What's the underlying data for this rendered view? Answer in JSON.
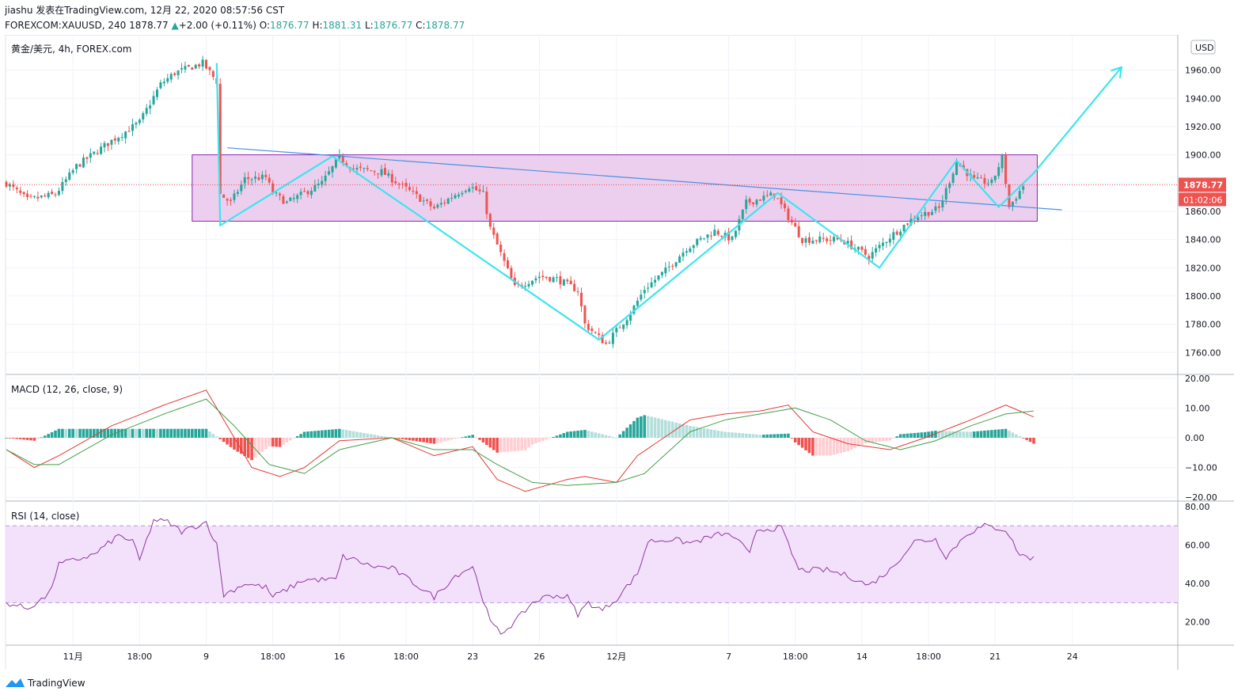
{
  "header": {
    "published_line": "jiashu 发表在TradingView.com, 12月 22, 2020 08:57:56 CST",
    "symbol": "FOREXCOM:XAUUSD, 240",
    "last": "1878.77",
    "change": "+2.00 (+0.11%)",
    "o_label": "O:",
    "o": "1876.77",
    "h_label": "H:",
    "h": "1881.31",
    "l_label": "L:",
    "l": "1876.77",
    "c_label": "C:",
    "c": "1878.77"
  },
  "footer": {
    "brand": "TradingView"
  },
  "colors": {
    "up": "#26a69a",
    "down": "#ef5350",
    "zigzag": "#3de4ef",
    "trend": "#4a90e2",
    "box_fill": "#e9c7eb",
    "box_stroke": "#8e24aa",
    "rsi_band": "#f3e0fb",
    "rsi_line": "#8e3a9f",
    "macd_line": "#e53935",
    "signal_line": "#43a047",
    "price_tag": "#ef5350"
  },
  "chart_data": [
    {
      "type": "candlestick",
      "title": "黄金/美元, 4h, FOREX.com",
      "currency": "USD",
      "y_ticks": [
        1760,
        1780,
        1800,
        1820,
        1840,
        1860,
        1880,
        1900,
        1920,
        1940,
        1960
      ],
      "y_tick_labels": [
        "1760.00",
        "1780.00",
        "1800.00",
        "1820.00",
        "1840.00",
        "1860.00",
        "1880.00",
        "1900.00",
        "1920.00",
        "1940.00",
        "1960.00"
      ],
      "ylim": [
        1745,
        1985
      ],
      "x_ticks": [
        "11月",
        "18:00",
        "9",
        "18:00",
        "16",
        "18:00",
        "23",
        "26",
        "12月",
        "7",
        "18:00",
        "14",
        "18:00",
        "21",
        "24"
      ],
      "x_tick_index": [
        19,
        38,
        57,
        76,
        95,
        114,
        133,
        152,
        174,
        206,
        225,
        244,
        263,
        282,
        304
      ],
      "current_price": "1878.77",
      "countdown": "01:02:06",
      "anchors": [
        [
          0,
          1880
        ],
        [
          6,
          1868
        ],
        [
          14,
          1872
        ],
        [
          20,
          1892
        ],
        [
          30,
          1910
        ],
        [
          38,
          1923
        ],
        [
          44,
          1950
        ],
        [
          48,
          1958
        ],
        [
          56,
          1965
        ],
        [
          60,
          1952
        ],
        [
          61,
          1872
        ],
        [
          64,
          1866
        ],
        [
          68,
          1883
        ],
        [
          74,
          1884
        ],
        [
          76,
          1873
        ],
        [
          80,
          1866
        ],
        [
          90,
          1880
        ],
        [
          95,
          1898
        ],
        [
          99,
          1890
        ],
        [
          107,
          1888
        ],
        [
          114,
          1876
        ],
        [
          122,
          1862
        ],
        [
          128,
          1872
        ],
        [
          132,
          1878
        ],
        [
          136,
          1872
        ],
        [
          138,
          1848
        ],
        [
          145,
          1806
        ],
        [
          152,
          1814
        ],
        [
          157,
          1812
        ],
        [
          163,
          1804
        ],
        [
          165,
          1780
        ],
        [
          171,
          1766
        ],
        [
          178,
          1788
        ],
        [
          182,
          1805
        ],
        [
          188,
          1818
        ],
        [
          194,
          1834
        ],
        [
          202,
          1846
        ],
        [
          207,
          1840
        ],
        [
          211,
          1866
        ],
        [
          219,
          1872
        ],
        [
          227,
          1840
        ],
        [
          238,
          1840
        ],
        [
          246,
          1828
        ],
        [
          252,
          1842
        ],
        [
          259,
          1856
        ],
        [
          266,
          1862
        ],
        [
          271,
          1895
        ],
        [
          276,
          1882
        ],
        [
          281,
          1880
        ],
        [
          284,
          1898
        ],
        [
          286,
          1863
        ],
        [
          290,
          1878
        ]
      ],
      "zone": {
        "x_start": 53,
        "x_end": 294,
        "y_low": 1853,
        "y_high": 1900
      },
      "trendline": [
        [
          63,
          1905
        ],
        [
          301,
          1861
        ]
      ],
      "zigzag": [
        [
          60,
          1965
        ],
        [
          61,
          1850
        ],
        [
          93,
          1899
        ],
        [
          120,
          1853
        ],
        [
          169,
          1769
        ],
        [
          220,
          1873
        ],
        [
          249,
          1820
        ],
        [
          271,
          1896
        ],
        [
          283,
          1863
        ],
        [
          293,
          1887
        ],
        [
          318,
          1962
        ]
      ]
    },
    {
      "type": "macd",
      "title": "MACD (12, 26, close, 9)",
      "y_ticks": [
        -20,
        -10,
        0,
        10,
        20
      ],
      "y_tick_labels": [
        "−20.00",
        "−10.00",
        "0.00",
        "10.00",
        "20.00"
      ],
      "ylim": [
        -21,
        21
      ],
      "macd_anchors": [
        [
          0,
          -4
        ],
        [
          8,
          -10
        ],
        [
          15,
          -6
        ],
        [
          30,
          4
        ],
        [
          45,
          11
        ],
        [
          57,
          16
        ],
        [
          62,
          6
        ],
        [
          70,
          -10
        ],
        [
          78,
          -13
        ],
        [
          85,
          -10
        ],
        [
          95,
          -1
        ],
        [
          110,
          0
        ],
        [
          122,
          -6
        ],
        [
          133,
          -3
        ],
        [
          140,
          -14
        ],
        [
          148,
          -18
        ],
        [
          160,
          -14
        ],
        [
          165,
          -13
        ],
        [
          174,
          -15
        ],
        [
          180,
          -6
        ],
        [
          195,
          6
        ],
        [
          205,
          8
        ],
        [
          215,
          9
        ],
        [
          223,
          11
        ],
        [
          230,
          2
        ],
        [
          240,
          -2
        ],
        [
          252,
          -4
        ],
        [
          262,
          0
        ],
        [
          275,
          6
        ],
        [
          285,
          11
        ],
        [
          293,
          7
        ]
      ],
      "signal_anchors": [
        [
          0,
          -4
        ],
        [
          8,
          -9
        ],
        [
          15,
          -9
        ],
        [
          30,
          1
        ],
        [
          45,
          8
        ],
        [
          57,
          13
        ],
        [
          65,
          4
        ],
        [
          75,
          -9
        ],
        [
          85,
          -12
        ],
        [
          95,
          -4
        ],
        [
          110,
          0
        ],
        [
          122,
          -4
        ],
        [
          133,
          -4
        ],
        [
          140,
          -9
        ],
        [
          150,
          -15
        ],
        [
          160,
          -16
        ],
        [
          174,
          -15
        ],
        [
          182,
          -12
        ],
        [
          195,
          2
        ],
        [
          205,
          6
        ],
        [
          215,
          8
        ],
        [
          225,
          10
        ],
        [
          235,
          6
        ],
        [
          245,
          -1
        ],
        [
          255,
          -4
        ],
        [
          265,
          -1
        ],
        [
          275,
          4
        ],
        [
          285,
          8
        ],
        [
          293,
          9
        ]
      ]
    },
    {
      "type": "rsi",
      "title": "RSI (14, close)",
      "y_ticks": [
        20,
        40,
        60,
        80
      ],
      "y_tick_labels": [
        "20.00",
        "40.00",
        "60.00",
        "80.00"
      ],
      "band": [
        30,
        70
      ],
      "ylim": [
        10,
        80
      ],
      "anchors": [
        [
          0,
          30
        ],
        [
          6,
          27
        ],
        [
          12,
          34
        ],
        [
          15,
          50
        ],
        [
          25,
          55
        ],
        [
          32,
          65
        ],
        [
          36,
          62
        ],
        [
          38,
          52
        ],
        [
          42,
          73
        ],
        [
          46,
          72
        ],
        [
          50,
          67
        ],
        [
          57,
          72
        ],
        [
          60,
          60
        ],
        [
          62,
          34
        ],
        [
          68,
          40
        ],
        [
          74,
          38
        ],
        [
          76,
          33
        ],
        [
          85,
          42
        ],
        [
          94,
          42
        ],
        [
          96,
          54
        ],
        [
          100,
          52
        ],
        [
          104,
          49
        ],
        [
          110,
          48
        ],
        [
          118,
          38
        ],
        [
          122,
          33
        ],
        [
          128,
          44
        ],
        [
          133,
          49
        ],
        [
          138,
          20
        ],
        [
          141,
          14
        ],
        [
          145,
          20
        ],
        [
          150,
          30
        ],
        [
          155,
          34
        ],
        [
          160,
          33
        ],
        [
          163,
          24
        ],
        [
          166,
          30
        ],
        [
          170,
          26
        ],
        [
          174,
          32
        ],
        [
          180,
          45
        ],
        [
          183,
          62
        ],
        [
          190,
          63
        ],
        [
          195,
          61
        ],
        [
          204,
          66
        ],
        [
          208,
          64
        ],
        [
          212,
          55
        ],
        [
          214,
          68
        ],
        [
          221,
          69
        ],
        [
          226,
          47
        ],
        [
          234,
          47
        ],
        [
          240,
          44
        ],
        [
          246,
          39
        ],
        [
          252,
          47
        ],
        [
          259,
          62
        ],
        [
          265,
          63
        ],
        [
          268,
          54
        ],
        [
          274,
          66
        ],
        [
          279,
          70
        ],
        [
          285,
          68
        ],
        [
          289,
          55
        ],
        [
          293,
          53
        ]
      ]
    }
  ]
}
